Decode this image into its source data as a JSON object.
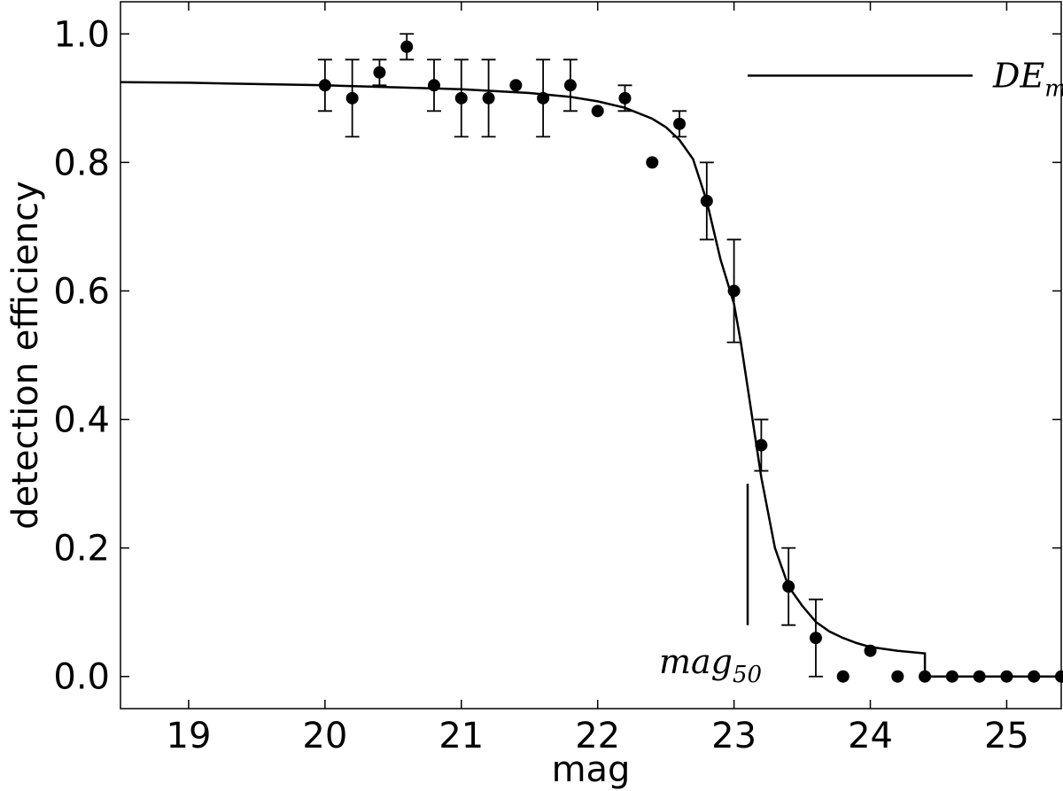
{
  "chart_data": {
    "type": "scatter",
    "title": "",
    "xlabel": "mag",
    "ylabel": "detection efficiency",
    "xlim": [
      18.5,
      25.4
    ],
    "ylim": [
      -0.05,
      1.05
    ],
    "xticks": [
      19,
      20,
      21,
      22,
      23,
      24,
      25
    ],
    "yticks": [
      0.0,
      0.2,
      0.4,
      0.6,
      0.8,
      1.0
    ],
    "xtick_labels": [
      "19",
      "20",
      "21",
      "22",
      "23",
      "24",
      "25"
    ],
    "ytick_labels": [
      "0.0",
      "0.2",
      "0.4",
      "0.6",
      "0.8",
      "1.0"
    ],
    "grid": false,
    "points": {
      "x": [
        20.0,
        20.2,
        20.4,
        20.6,
        20.8,
        21.0,
        21.2,
        21.4,
        21.6,
        21.8,
        22.0,
        22.2,
        22.4,
        22.6,
        22.8,
        23.0,
        23.2,
        23.4,
        23.6,
        23.8,
        24.0,
        24.2,
        24.4,
        24.6,
        24.8,
        25.0,
        25.2,
        25.4
      ],
      "y": [
        0.92,
        0.9,
        0.94,
        0.98,
        0.92,
        0.9,
        0.9,
        0.92,
        0.9,
        0.92,
        0.88,
        0.9,
        0.8,
        0.86,
        0.74,
        0.6,
        0.36,
        0.14,
        0.06,
        0.0,
        0.04,
        0.0,
        0.0,
        0.0,
        0.0,
        0.0,
        0.0,
        0.0
      ],
      "yerr": [
        0.04,
        0.06,
        0.02,
        0.02,
        0.04,
        0.06,
        0.06,
        0.0,
        0.06,
        0.04,
        0.0,
        0.02,
        0.0,
        0.02,
        0.06,
        0.08,
        0.04,
        0.06,
        0.06,
        0.0,
        0.0,
        0.0,
        0.0,
        0.0,
        0.0,
        0.0,
        0.0,
        0.0
      ]
    },
    "fit_curve": {
      "x": [
        18.5,
        19.0,
        19.5,
        20.0,
        20.5,
        21.0,
        21.5,
        21.8,
        22.0,
        22.2,
        22.4,
        22.5,
        22.6,
        22.7,
        22.8,
        22.9,
        23.0,
        23.05,
        23.1,
        23.15,
        23.2,
        23.3,
        23.4,
        23.5,
        23.6,
        23.7,
        23.8,
        23.9,
        24.0,
        24.2,
        24.4,
        24.4,
        25.4
      ],
      "y": [
        0.925,
        0.924,
        0.922,
        0.92,
        0.917,
        0.914,
        0.908,
        0.902,
        0.895,
        0.885,
        0.868,
        0.855,
        0.835,
        0.805,
        0.74,
        0.65,
        0.58,
        0.52,
        0.45,
        0.38,
        0.31,
        0.2,
        0.14,
        0.11,
        0.085,
        0.07,
        0.06,
        0.052,
        0.046,
        0.04,
        0.036,
        0.0,
        0.0
      ]
    },
    "mag50_marker": {
      "x": 23.1,
      "y_from": 0.08,
      "y_to": 0.3
    },
    "annotations": {
      "legend_main": "DE",
      "legend_sub": "max",
      "mag50_main": "mag",
      "mag50_sub": "50"
    },
    "legend_placement": "top-right"
  }
}
